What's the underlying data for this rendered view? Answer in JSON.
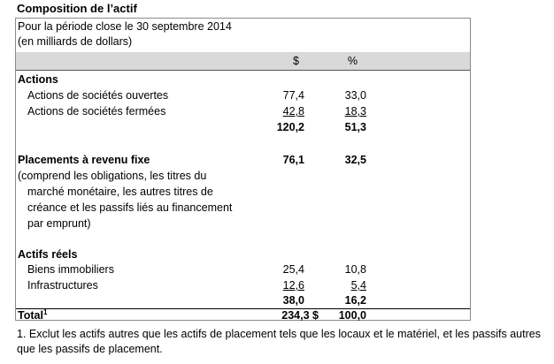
{
  "title": "Composition de l’actif",
  "header": {
    "line1": "Pour la période close le 30 septembre 2014",
    "line2": "(en milliards de dollars)"
  },
  "columns": {
    "dollar": "$",
    "percent": "%"
  },
  "actions": {
    "heading": "Actions",
    "rows": [
      {
        "label": "Actions de sociétés ouvertes",
        "dollar": "77,4",
        "percent": "33,0"
      },
      {
        "label": "Actions de sociétés fermées",
        "dollar": "42,8",
        "percent": "18,3"
      }
    ],
    "subtotal": {
      "dollar": "120,2",
      "percent": "51,3"
    }
  },
  "fixed_income": {
    "heading": "Placements à revenu fixe",
    "dollar": "76,1",
    "percent": "32,5",
    "desc_lines": [
      "(comprend les obligations, les titres du",
      "marché monétaire, les autres titres de",
      "créance et les passifs liés au financement",
      "par emprunt)"
    ]
  },
  "real_assets": {
    "heading": "Actifs réels",
    "rows": [
      {
        "label": "Biens immobiliers",
        "dollar": "25,4",
        "percent": "10,8"
      },
      {
        "label": "Infrastructures",
        "dollar": "12,6",
        "percent": "5,4"
      }
    ],
    "subtotal": {
      "dollar": "38,0",
      "percent": "16,2"
    }
  },
  "total": {
    "label": "Total",
    "footnote_mark": "1",
    "dollar": "234,3 $",
    "percent": "100,0"
  },
  "footnote": {
    "line1": "1.  Exclut les actifs autres que les actifs de placement tels que les locaux et le matériel, et les passifs autres",
    "line2": "que les passifs de placement."
  }
}
